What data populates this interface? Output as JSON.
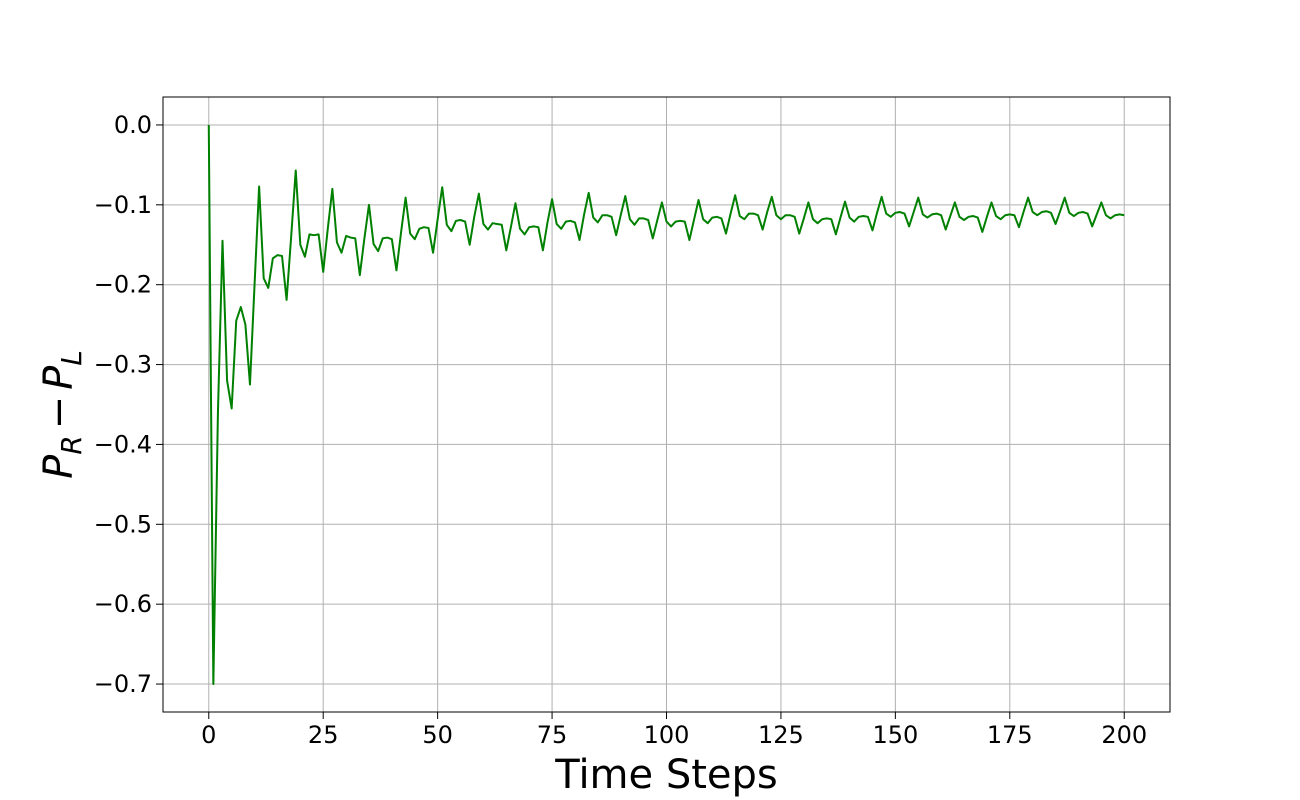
{
  "chart_data": {
    "type": "line",
    "title": "",
    "xlabel": "Time Steps",
    "ylabel": "P_R − P_L",
    "ylabel_parts": {
      "main_left": "P",
      "sub_left": "R",
      "operator": "−",
      "main_right": "P",
      "sub_right": "L"
    },
    "xlim": [
      -10,
      210
    ],
    "ylim": [
      -0.735,
      0.035
    ],
    "xticks": [
      0,
      25,
      50,
      75,
      100,
      125,
      150,
      175,
      200
    ],
    "xtick_labels": [
      "0",
      "25",
      "50",
      "75",
      "100",
      "125",
      "150",
      "175",
      "200"
    ],
    "yticks": [
      0.0,
      -0.1,
      -0.2,
      -0.3,
      -0.4,
      -0.5,
      -0.6,
      -0.7
    ],
    "ytick_labels": [
      "0.0",
      "−0.1",
      "−0.2",
      "−0.3",
      "−0.4",
      "−0.5",
      "−0.6",
      "−0.7"
    ],
    "grid": true,
    "legend": "none",
    "series": [
      {
        "color": "#008000",
        "x": [
          0,
          1,
          2,
          3,
          4,
          5,
          6,
          7,
          8,
          9,
          10,
          11,
          12,
          13,
          14,
          15,
          16,
          17,
          18,
          19,
          20,
          21,
          22,
          23,
          24,
          25,
          26,
          27,
          28,
          29,
          30,
          31,
          32,
          33,
          34,
          35,
          36,
          37,
          38,
          39,
          40,
          41,
          42,
          43,
          44,
          45,
          46,
          47,
          48,
          49,
          50,
          51,
          52,
          53,
          54,
          55,
          56,
          57,
          58,
          59,
          60,
          61,
          62,
          63,
          64,
          65,
          66,
          67,
          68,
          69,
          70,
          71,
          72,
          73,
          74,
          75,
          76,
          77,
          78,
          79,
          80,
          81,
          82,
          83,
          84,
          85,
          86,
          87,
          88,
          89,
          90,
          91,
          92,
          93,
          94,
          95,
          96,
          97,
          98,
          99,
          100,
          101,
          102,
          103,
          104,
          105,
          106,
          107,
          108,
          109,
          110,
          111,
          112,
          113,
          114,
          115,
          116,
          117,
          118,
          119,
          120,
          121,
          122,
          123,
          124,
          125,
          126,
          127,
          128,
          129,
          130,
          131,
          132,
          133,
          134,
          135,
          136,
          137,
          138,
          139,
          140,
          141,
          142,
          143,
          144,
          145,
          146,
          147,
          148,
          149,
          150,
          151,
          152,
          153,
          154,
          155,
          156,
          157,
          158,
          159,
          160,
          161,
          162,
          163,
          164,
          165,
          166,
          167,
          168,
          169,
          170,
          171,
          172,
          173,
          174,
          175,
          176,
          177,
          178,
          179,
          180,
          181,
          182,
          183,
          184,
          185,
          186,
          187,
          188,
          189,
          190,
          191,
          192,
          193,
          194,
          195,
          196,
          197,
          198,
          199,
          200
        ],
        "y": [
          0.0,
          -0.7,
          -0.36,
          -0.145,
          -0.32,
          -0.355,
          -0.245,
          -0.228,
          -0.25,
          -0.325,
          -0.2,
          -0.077,
          -0.192,
          -0.204,
          -0.167,
          -0.163,
          -0.164,
          -0.219,
          -0.14,
          -0.057,
          -0.15,
          -0.165,
          -0.137,
          -0.138,
          -0.137,
          -0.184,
          -0.13,
          -0.08,
          -0.147,
          -0.16,
          -0.139,
          -0.141,
          -0.142,
          -0.188,
          -0.142,
          -0.1,
          -0.149,
          -0.158,
          -0.142,
          -0.141,
          -0.143,
          -0.182,
          -0.135,
          -0.091,
          -0.136,
          -0.143,
          -0.13,
          -0.128,
          -0.129,
          -0.16,
          -0.118,
          -0.078,
          -0.125,
          -0.133,
          -0.12,
          -0.119,
          -0.121,
          -0.15,
          -0.115,
          -0.086,
          -0.124,
          -0.131,
          -0.123,
          -0.124,
          -0.125,
          -0.157,
          -0.128,
          -0.098,
          -0.13,
          -0.137,
          -0.128,
          -0.127,
          -0.128,
          -0.157,
          -0.122,
          -0.093,
          -0.124,
          -0.13,
          -0.121,
          -0.12,
          -0.122,
          -0.144,
          -0.112,
          -0.085,
          -0.116,
          -0.122,
          -0.113,
          -0.113,
          -0.115,
          -0.138,
          -0.113,
          -0.089,
          -0.118,
          -0.125,
          -0.117,
          -0.117,
          -0.119,
          -0.142,
          -0.119,
          -0.097,
          -0.121,
          -0.127,
          -0.121,
          -0.12,
          -0.121,
          -0.144,
          -0.119,
          -0.094,
          -0.118,
          -0.123,
          -0.116,
          -0.115,
          -0.117,
          -0.136,
          -0.111,
          -0.088,
          -0.114,
          -0.118,
          -0.111,
          -0.111,
          -0.113,
          -0.131,
          -0.109,
          -0.09,
          -0.113,
          -0.118,
          -0.113,
          -0.113,
          -0.115,
          -0.136,
          -0.117,
          -0.097,
          -0.118,
          -0.123,
          -0.118,
          -0.117,
          -0.118,
          -0.137,
          -0.116,
          -0.096,
          -0.116,
          -0.121,
          -0.115,
          -0.114,
          -0.115,
          -0.132,
          -0.11,
          -0.09,
          -0.111,
          -0.115,
          -0.11,
          -0.109,
          -0.111,
          -0.127,
          -0.109,
          -0.091,
          -0.112,
          -0.116,
          -0.112,
          -0.111,
          -0.113,
          -0.131,
          -0.114,
          -0.097,
          -0.115,
          -0.119,
          -0.115,
          -0.114,
          -0.116,
          -0.134,
          -0.115,
          -0.097,
          -0.114,
          -0.118,
          -0.113,
          -0.112,
          -0.113,
          -0.128,
          -0.109,
          -0.091,
          -0.109,
          -0.113,
          -0.109,
          -0.108,
          -0.11,
          -0.124,
          -0.108,
          -0.091,
          -0.11,
          -0.114,
          -0.11,
          -0.109,
          -0.111,
          -0.127,
          -0.112,
          -0.097,
          -0.113,
          -0.117,
          -0.113,
          -0.112,
          -0.113
        ]
      }
    ]
  }
}
